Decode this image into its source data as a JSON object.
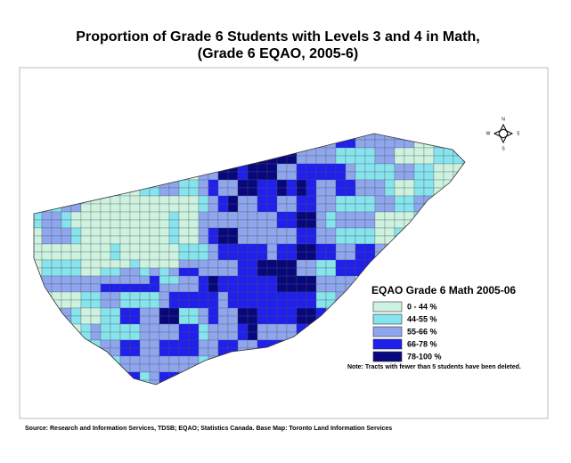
{
  "title": [
    "Proportion of Grade 6 Students with Levels 3 and 4 in Math,",
    "(Grade 6 EQAO, 2005-6)"
  ],
  "compass": [
    "N",
    "E",
    "S",
    "W"
  ],
  "legend": {
    "title": "EQAO Grade 6 Math 2005-06",
    "items": [
      {
        "label": "0 - 44 %",
        "color": "#cdf3e0"
      },
      {
        "label": "44-55 %",
        "color": "#86e4ef"
      },
      {
        "label": "55-66 %",
        "color": "#8ea6ee"
      },
      {
        "label": "66-78 %",
        "color": "#1f1fee"
      },
      {
        "label": "78-100 %",
        "color": "#07077e"
      }
    ]
  },
  "note": "Note:  Tracts with fewer than 5 students have been deleted.",
  "source": "Source: Research and Information Services, TDSB; EQAO; Statistics Canada.  Base Map: Toronto Land Information Services"
}
